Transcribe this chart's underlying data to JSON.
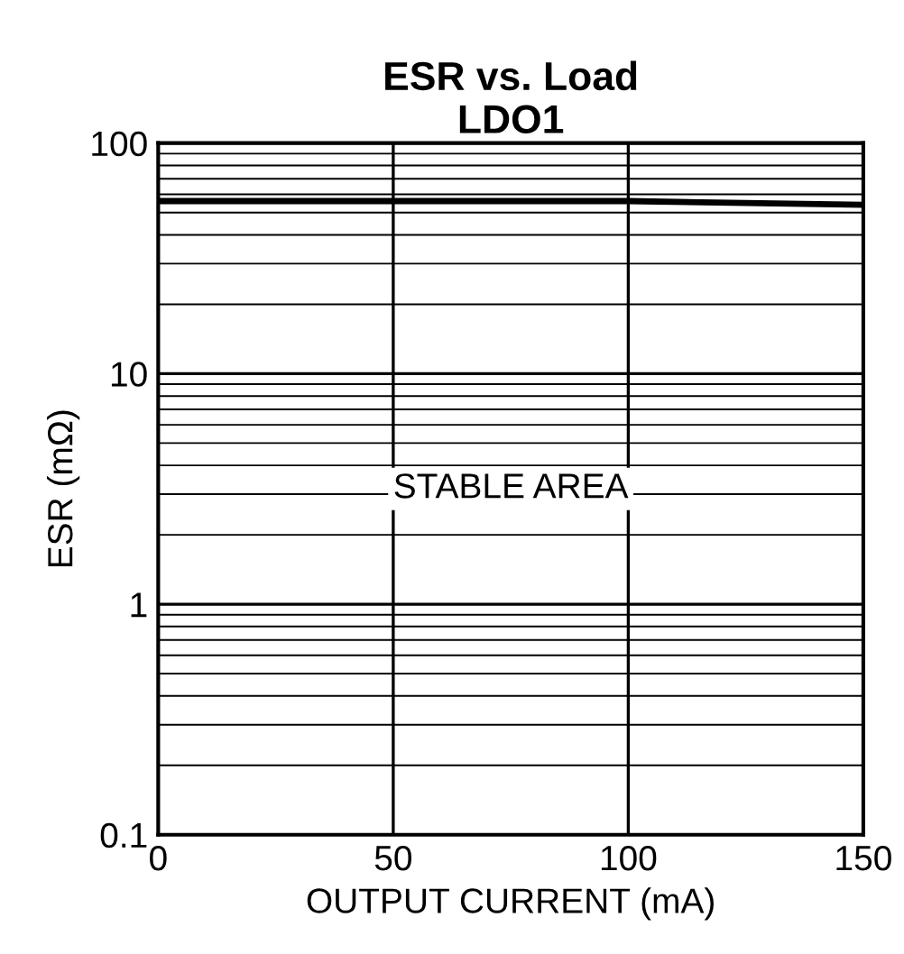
{
  "chart_data": {
    "type": "line",
    "title": "ESR vs. Load\nLDO1",
    "xlabel": "OUTPUT CURRENT (mA)",
    "ylabel": "ESR (mΩ)",
    "x": [
      0,
      50,
      100,
      150
    ],
    "series": [
      {
        "color": "#000000",
        "values": [
          56,
          56,
          56,
          54
        ]
      }
    ],
    "xlim": [
      0,
      150
    ],
    "xticks": [
      0,
      50,
      100,
      150
    ],
    "ylim": [
      0.1,
      100
    ],
    "yticks": [
      0.1,
      1,
      10,
      100
    ],
    "log": "y",
    "grid": true,
    "annotations": [
      "STABLE AREA"
    ]
  }
}
